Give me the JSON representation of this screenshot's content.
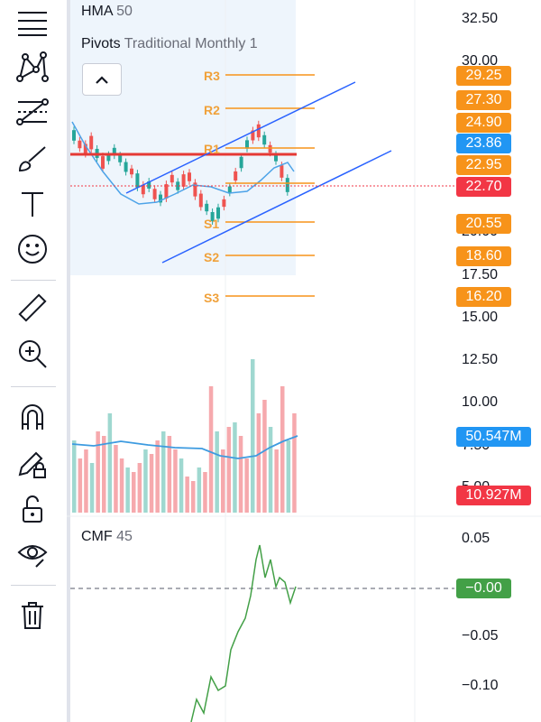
{
  "toolbar": {
    "tools": [
      {
        "name": "trend-line-tool",
        "icon": "lines-icon"
      },
      {
        "name": "pattern-tool",
        "icon": "xabcd-pattern-icon"
      },
      {
        "name": "fib-tool",
        "icon": "fib-retracement-icon"
      },
      {
        "name": "brush-tool",
        "icon": "brush-icon"
      },
      {
        "name": "text-tool",
        "icon": "text-icon"
      },
      {
        "name": "emoji-tool",
        "icon": "smiley-icon"
      },
      {
        "name": "measure-tool",
        "icon": "ruler-icon"
      },
      {
        "name": "zoom-tool",
        "icon": "zoom-in-icon"
      },
      {
        "name": "magnet-tool",
        "icon": "magnet-icon"
      },
      {
        "name": "lock-drawing-tool",
        "icon": "pencil-lock-icon"
      },
      {
        "name": "lock-all-tool",
        "icon": "unlock-icon"
      },
      {
        "name": "hide-tool",
        "icon": "eye-icon"
      },
      {
        "name": "delete-tool",
        "icon": "trash-icon"
      }
    ]
  },
  "legends": {
    "hma": {
      "name": "HMA",
      "value": "50"
    },
    "pivots": {
      "name": "Pivots",
      "settings": "Traditional Monthly 1"
    },
    "cmf": {
      "name": "CMF",
      "value": "45"
    }
  },
  "price_axis": [
    "32.50",
    "30.00",
    "20.00",
    "17.50",
    "15.00",
    "12.50",
    "10.00",
    "7.50",
    "5.00"
  ],
  "price_tags": [
    {
      "label": "29.25",
      "color": "#f7931a"
    },
    {
      "label": "27.30",
      "color": "#f7931a"
    },
    {
      "label": "24.90",
      "color": "#f7931a"
    },
    {
      "label": "23.86",
      "color": "#2196f3"
    },
    {
      "label": "22.95",
      "color": "#f7931a"
    },
    {
      "label": "22.70",
      "color": "#f23645"
    },
    {
      "label": "20.55",
      "color": "#f7931a"
    },
    {
      "label": "18.60",
      "color": "#f7931a"
    },
    {
      "label": "16.20",
      "color": "#f7931a"
    }
  ],
  "volume_tags": [
    {
      "label": "50.547M",
      "color": "#2196f3"
    },
    {
      "label": "10.927M",
      "color": "#f23645"
    }
  ],
  "pivot_labels": [
    "R3",
    "R2",
    "R1",
    "S1",
    "S2",
    "S3"
  ],
  "cmf_axis": [
    "0.05",
    "−0.05",
    "−0.10"
  ],
  "cmf_tag": {
    "label": "−0.00",
    "color": "#43a047"
  },
  "colors": {
    "up": "#26a69a",
    "down": "#ef5350",
    "pivot": "#f7931a",
    "channel": "#2962ff",
    "hma": "#2196f3"
  }
}
